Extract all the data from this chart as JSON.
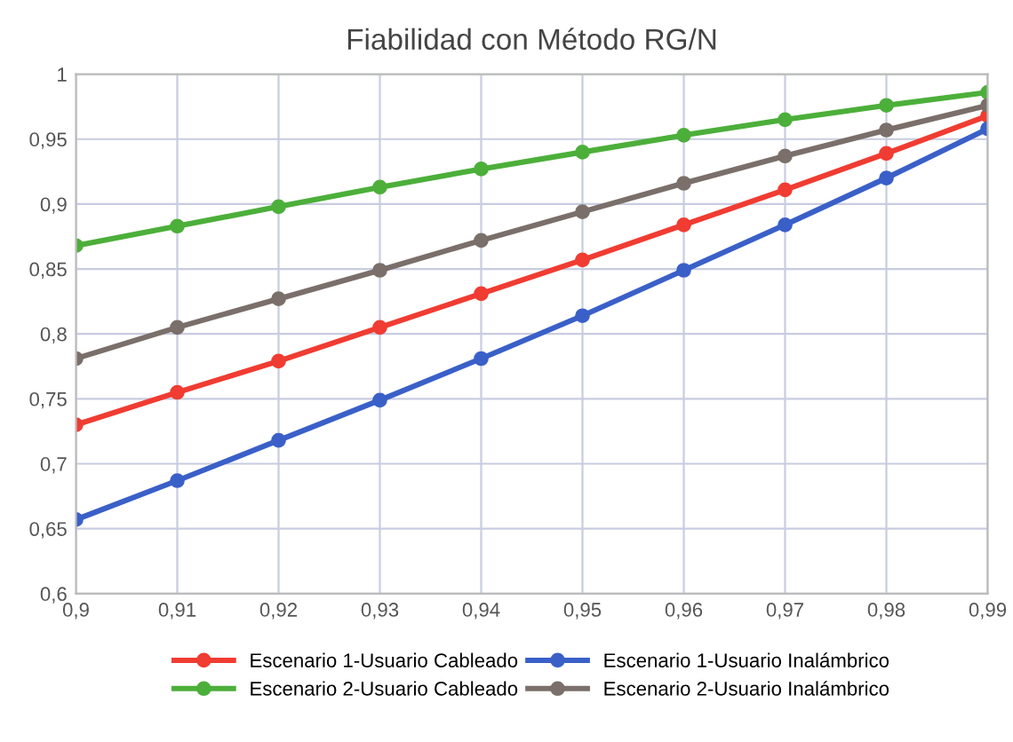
{
  "chart_data": {
    "type": "line",
    "title": "Fiabilidad con Método RG/N",
    "x": [
      0.9,
      0.91,
      0.92,
      0.93,
      0.94,
      0.95,
      0.96,
      0.97,
      0.98,
      0.99
    ],
    "series": [
      {
        "name": "Escenario 1-Usuario Cableado",
        "color": "#f03c32",
        "values": [
          0.73,
          0.755,
          0.779,
          0.805,
          0.831,
          0.857,
          0.884,
          0.911,
          0.939,
          0.968
        ]
      },
      {
        "name": "Escenario 2-Usuario Cableado",
        "color": "#4caf3a",
        "values": [
          0.868,
          0.883,
          0.898,
          0.913,
          0.927,
          0.94,
          0.953,
          0.965,
          0.976,
          0.986
        ]
      },
      {
        "name": "Escenario 1-Usuario Inalámbrico",
        "color": "#3a60c8",
        "values": [
          0.657,
          0.687,
          0.718,
          0.749,
          0.781,
          0.814,
          0.849,
          0.884,
          0.92,
          0.958
        ]
      },
      {
        "name": "Escenario 2-Usuario Inalámbrico",
        "color": "#7a6f6a",
        "values": [
          0.781,
          0.805,
          0.827,
          0.849,
          0.872,
          0.894,
          0.916,
          0.937,
          0.957,
          0.976
        ]
      }
    ],
    "xlim": [
      0.9,
      0.99
    ],
    "xticks": [
      {
        "value": 0.9,
        "label": "0,9"
      },
      {
        "value": 0.91,
        "label": "0,91"
      },
      {
        "value": 0.92,
        "label": "0,92"
      },
      {
        "value": 0.93,
        "label": "0,93"
      },
      {
        "value": 0.94,
        "label": "0,94"
      },
      {
        "value": 0.95,
        "label": "0,95"
      },
      {
        "value": 0.96,
        "label": "0,96"
      },
      {
        "value": 0.97,
        "label": "0,97"
      },
      {
        "value": 0.98,
        "label": "0,98"
      },
      {
        "value": 0.99,
        "label": "0,99"
      }
    ],
    "ylim": [
      0.6,
      1
    ],
    "yticks": [
      {
        "value": 0.6,
        "label": "0,6"
      },
      {
        "value": 0.65,
        "label": "0,65"
      },
      {
        "value": 0.7,
        "label": "0,7"
      },
      {
        "value": 0.75,
        "label": "0,75"
      },
      {
        "value": 0.8,
        "label": "0,8"
      },
      {
        "value": 0.85,
        "label": "0,85"
      },
      {
        "value": 0.9,
        "label": "0,9"
      },
      {
        "value": 0.95,
        "label": "0,95"
      },
      {
        "value": 1,
        "label": "1"
      }
    ],
    "grid": true,
    "legend": "bottom",
    "marker": "circle",
    "line_style": "solid"
  }
}
